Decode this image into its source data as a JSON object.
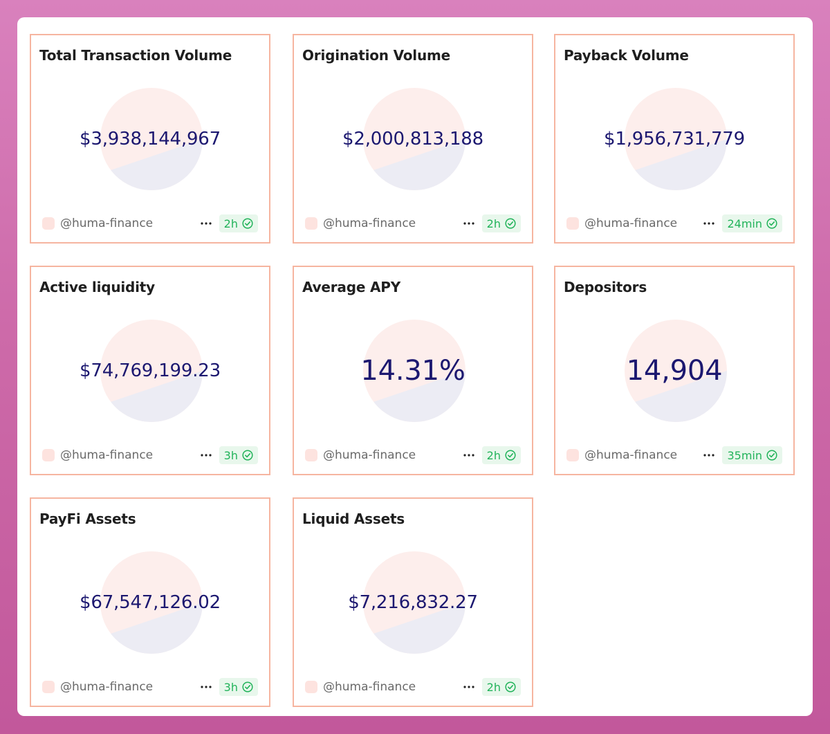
{
  "author_handle": "@huma-finance",
  "colors": {
    "card_border": "#f6b5a0",
    "value_text": "#1c1870",
    "pie_top": "#fdeeec",
    "pie_bottom": "#ececf4",
    "badge_text": "#22b35a",
    "badge_bg": "#e8f7ec"
  },
  "icons": {
    "more": "more-horizontal-icon",
    "verified": "check-circle-icon"
  },
  "cards": [
    {
      "title": "Total Transaction Volume",
      "value": "$3,938,144,967",
      "author": "@huma-finance",
      "updated": "2h"
    },
    {
      "title": "Origination Volume",
      "value": "$2,000,813,188",
      "author": "@huma-finance",
      "updated": "2h"
    },
    {
      "title": "Payback Volume",
      "value": "$1,956,731,779",
      "author": "@huma-finance",
      "updated": "24min"
    },
    {
      "title": "Active liquidity",
      "value": "$74,769,199.23",
      "author": "@huma-finance",
      "updated": "3h"
    },
    {
      "title": "Average APY",
      "value": "14.31%",
      "author": "@huma-finance",
      "updated": "2h"
    },
    {
      "title": "Depositors",
      "value": "14,904",
      "author": "@huma-finance",
      "updated": "35min"
    },
    {
      "title": "PayFi Assets",
      "value": "$67,547,126.02",
      "author": "@huma-finance",
      "updated": "3h"
    },
    {
      "title": "Liquid Assets",
      "value": "$7,216,832.27",
      "author": "@huma-finance",
      "updated": "2h"
    }
  ]
}
